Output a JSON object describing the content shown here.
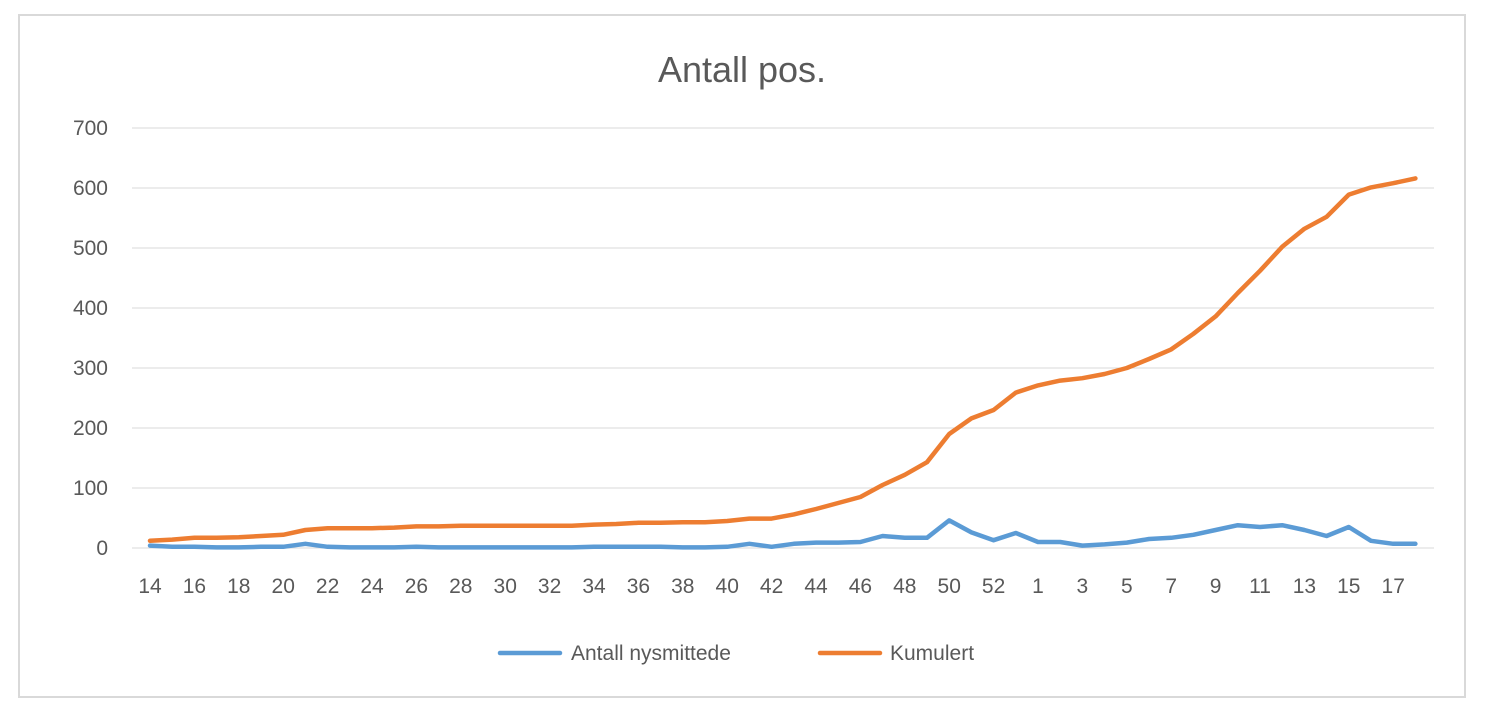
{
  "chart_data": {
    "type": "line",
    "title": "Antall pos.",
    "xlabel": "",
    "ylabel": "",
    "ylim": [
      0,
      700
    ],
    "yticks": [
      "0",
      "100",
      "200",
      "300",
      "400",
      "500",
      "600",
      "700"
    ],
    "categories": [
      "14",
      "15",
      "16",
      "17",
      "18",
      "19",
      "20",
      "21",
      "22",
      "23",
      "24",
      "25",
      "26",
      "27",
      "28",
      "29",
      "30",
      "31",
      "32",
      "33",
      "34",
      "35",
      "36",
      "37",
      "38",
      "39",
      "40",
      "41",
      "42",
      "43",
      "44",
      "45",
      "46",
      "47",
      "48",
      "49",
      "50",
      "51",
      "52",
      "53",
      "1",
      "2",
      "3",
      "4",
      "5",
      "6",
      "7",
      "8",
      "9",
      "10",
      "11",
      "12",
      "13",
      "14",
      "15",
      "16",
      "17",
      "18"
    ],
    "xtick_labels": [
      "14",
      "16",
      "18",
      "20",
      "22",
      "24",
      "26",
      "28",
      "30",
      "32",
      "34",
      "36",
      "38",
      "40",
      "42",
      "44",
      "46",
      "48",
      "50",
      "52",
      "1",
      "3",
      "5",
      "7",
      "9",
      "11",
      "13",
      "15",
      "17"
    ],
    "grid": true,
    "legend_position": "bottom",
    "series": [
      {
        "name": "Antall nysmittede",
        "color": "#5b9bd5",
        "values": [
          4,
          2,
          2,
          1,
          1,
          2,
          2,
          7,
          2,
          1,
          1,
          1,
          2,
          1,
          1,
          1,
          1,
          1,
          1,
          1,
          2,
          2,
          2,
          2,
          1,
          1,
          2,
          7,
          2,
          7,
          9,
          9,
          10,
          20,
          17,
          17,
          46,
          26,
          13,
          25,
          10,
          10,
          4,
          6,
          9,
          15,
          17,
          22,
          30,
          38,
          35,
          38,
          30,
          20,
          35,
          12,
          7,
          7
        ]
      },
      {
        "name": "Kumulert",
        "color": "#ed7d31",
        "values": [
          12,
          14,
          17,
          17,
          18,
          20,
          22,
          30,
          33,
          33,
          33,
          34,
          36,
          36,
          37,
          37,
          37,
          37,
          37,
          37,
          39,
          40,
          42,
          42,
          43,
          43,
          45,
          49,
          49,
          56,
          65,
          75,
          85,
          105,
          122,
          143,
          190,
          216,
          230,
          259,
          271,
          279,
          283,
          290,
          300,
          315,
          331,
          357,
          386,
          425,
          462,
          502,
          532,
          552,
          589,
          601,
          608,
          616
        ]
      }
    ]
  }
}
